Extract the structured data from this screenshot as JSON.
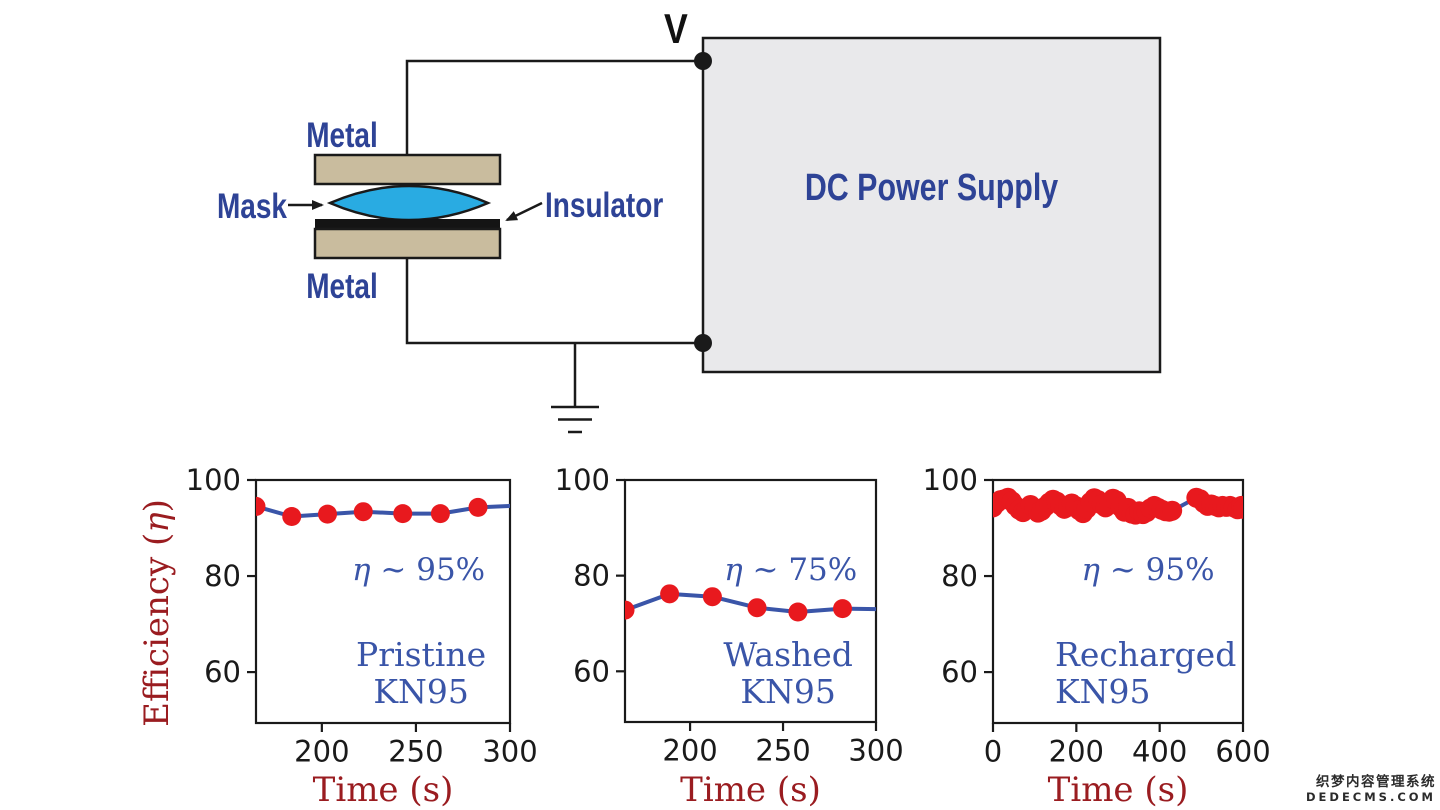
{
  "diagram": {
    "v_label": "V",
    "metal_top": "Metal",
    "metal_bottom": "Metal",
    "mask": "Mask",
    "insulator": "Insulator",
    "power_supply": "DC Power Supply"
  },
  "colors": {
    "wire": "#1a1a1a",
    "metal_tan": "#c9bc9e",
    "mask_blue": "#29abe2",
    "insulator_black": "#141414",
    "box_gray": "#e9e9eb",
    "navy_text": "#2e4396",
    "line_blue": "#3a55a8",
    "marker_red": "#e8191e",
    "dark_red": "#9a1c20",
    "tick_text": "#1a1a1a",
    "frame": "#1a1a1a"
  },
  "chart_data": [
    {
      "type": "line",
      "annotation": "η ~ 95%",
      "label_lines": [
        "Pristine",
        "KN95"
      ],
      "label_align": "center",
      "xlabel": "Time (s)",
      "ylabel": "Efficiency (η)",
      "xlim": [
        165,
        300
      ],
      "ylim": [
        49.4,
        100
      ],
      "xticks": [
        200,
        250,
        300
      ],
      "yticks": [
        100,
        80,
        60
      ],
      "marker_size": 9.5,
      "line": {
        "x": [
          165,
          184,
          203,
          222,
          243,
          263,
          283,
          300
        ],
        "y": [
          94.5,
          92.4,
          92.9,
          93.4,
          93.0,
          93.0,
          94.3,
          94.6
        ]
      },
      "markers": {
        "x": [
          165,
          184,
          203,
          222,
          243,
          263,
          283
        ],
        "y": [
          94.5,
          92.4,
          92.9,
          93.4,
          93.0,
          93.0,
          94.3
        ]
      }
    },
    {
      "type": "line",
      "annotation": "η ~ 75%",
      "label_lines": [
        "Washed",
        "KN95"
      ],
      "label_align": "center",
      "xlabel": "Time (s)",
      "ylabel": "",
      "xlim": [
        165,
        300
      ],
      "ylim": [
        49.4,
        100
      ],
      "xticks": [
        200,
        250,
        300
      ],
      "yticks": [
        100,
        80,
        60
      ],
      "marker_size": 9.5,
      "line": {
        "x": [
          165,
          189,
          212,
          236,
          258,
          282,
          300
        ],
        "y": [
          72.8,
          76.2,
          75.6,
          73.3,
          72.4,
          73.1,
          73.0
        ]
      },
      "markers": {
        "x": [
          165,
          189,
          212,
          236,
          258,
          282
        ],
        "y": [
          72.8,
          76.2,
          75.6,
          73.3,
          72.4,
          73.1
        ]
      }
    },
    {
      "type": "line",
      "annotation": "η ~ 95%",
      "label_lines": [
        "Recharged",
        "KN95"
      ],
      "label_align": "left",
      "xlabel": "Time (s)",
      "ylabel": "",
      "xlim": [
        0,
        600
      ],
      "ylim": [
        49.4,
        100
      ],
      "xticks": [
        0,
        200,
        400,
        600
      ],
      "yticks": [
        100,
        80,
        60
      ],
      "marker_size": 10,
      "markers_same_as_line": true,
      "line": {
        "x": [
          0,
          9,
          18,
          27,
          36,
          45,
          54,
          63,
          72,
          81,
          90,
          99,
          108,
          117,
          126,
          135,
          144,
          153,
          162,
          171,
          180,
          189,
          198,
          207,
          216,
          225,
          234,
          243,
          252,
          261,
          270,
          279,
          288,
          297,
          306,
          315,
          324,
          333,
          342,
          351,
          360,
          369,
          378,
          387,
          396,
          405,
          414,
          423,
          430,
          488,
          497,
          506,
          515,
          524,
          533,
          542,
          551,
          560,
          569,
          578,
          587,
          596,
          600
        ],
        "y": [
          94.3,
          95.2,
          95.8,
          96.0,
          96.3,
          95.6,
          94.6,
          93.8,
          93.3,
          93.9,
          94.8,
          94.2,
          93.2,
          93.6,
          94.5,
          95.3,
          95.9,
          95.5,
          94.7,
          94.0,
          94.4,
          95.1,
          94.6,
          93.7,
          93.1,
          94.0,
          95.4,
          96.2,
          95.8,
          94.9,
          94.3,
          95.0,
          96.1,
          95.7,
          94.4,
          93.4,
          94.2,
          93.0,
          92.8,
          93.5,
          92.9,
          93.3,
          94.1,
          94.6,
          94.2,
          93.8,
          93.5,
          93.4,
          93.6,
          96.3,
          96.0,
          95.2,
          94.6,
          94.9,
          94.6,
          94.3,
          94.6,
          94.4,
          94.6,
          94.3,
          93.9,
          94.6,
          94.0
        ]
      }
    }
  ],
  "watermark": {
    "line1": "织梦内容管理系统",
    "line2": "DEDECMS.COM"
  }
}
